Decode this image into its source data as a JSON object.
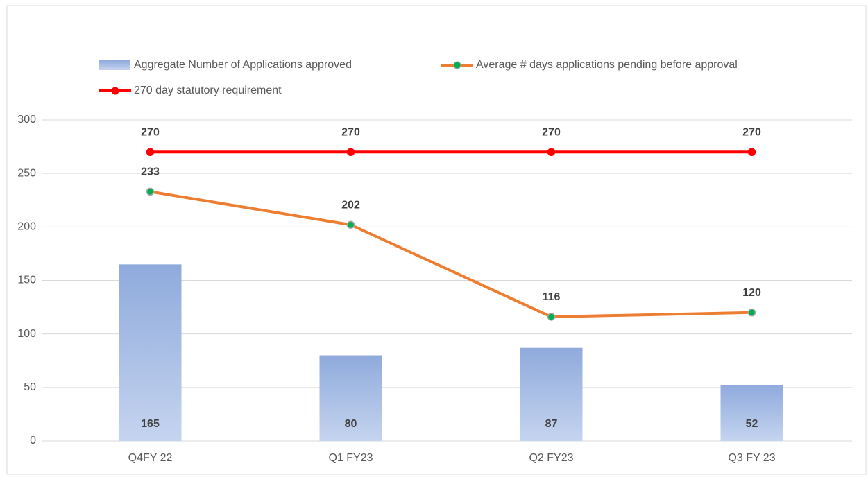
{
  "chart_data": {
    "type": "combo",
    "categories": [
      "Q4FY 22",
      "Q1 FY23",
      "Q2 FY23",
      "Q3 FY 23"
    ],
    "series": [
      {
        "name": "Aggregate Number of  Applications approved",
        "type": "bar",
        "color": "#8faadc",
        "values": [
          165,
          80,
          87,
          52
        ]
      },
      {
        "name": "Average # days applications pending before approval",
        "type": "line",
        "color": "#ed7d31",
        "marker_color": "#00b050",
        "values": [
          233,
          202,
          116,
          120
        ]
      },
      {
        "name": "270 day statutory requirement",
        "type": "line",
        "color": "#ff0000",
        "marker_color": "#ff0000",
        "values": [
          270,
          270,
          270,
          270
        ]
      }
    ],
    "ylim": [
      0,
      300
    ],
    "yticks": [
      0,
      50,
      100,
      150,
      200,
      250,
      300
    ],
    "grid": true
  }
}
